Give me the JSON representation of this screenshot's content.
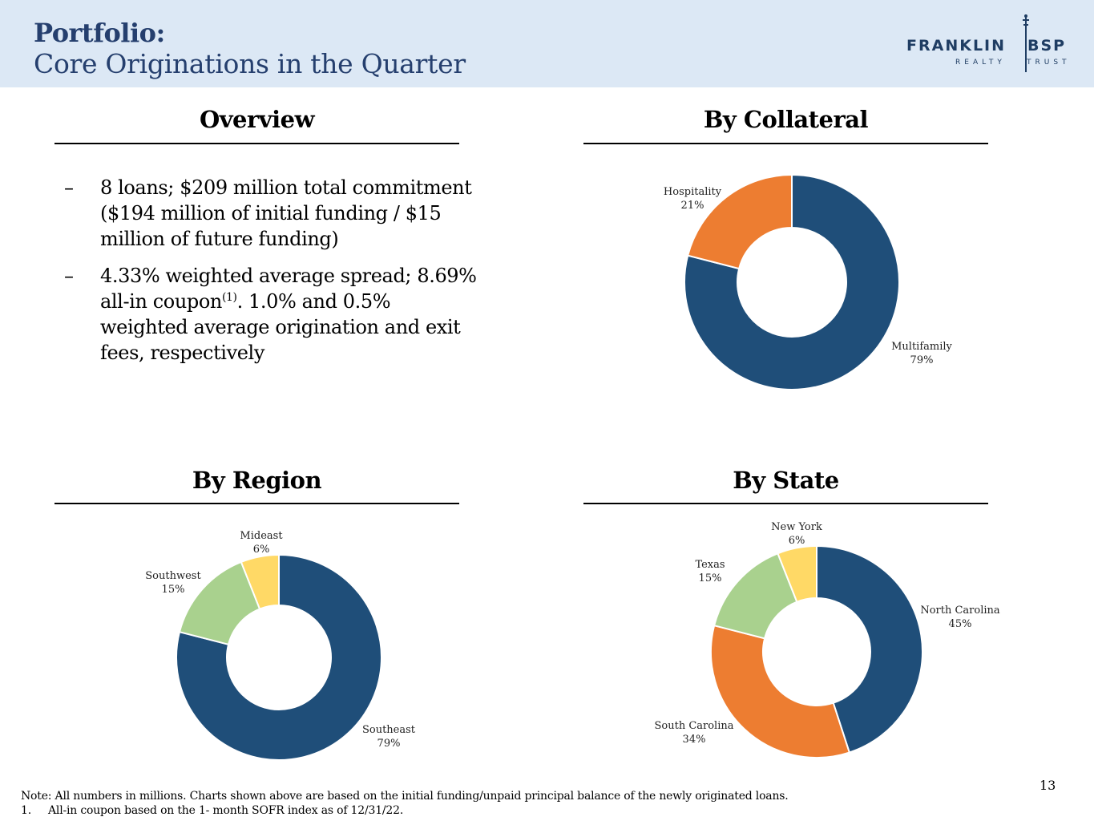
{
  "header": {
    "title": "Portfolio:",
    "subtitle": "Core Originations in the Quarter",
    "logo": {
      "word1": "FRANKLIN",
      "word2": "BSP",
      "word3": "REALTY",
      "word4": "TRUST"
    }
  },
  "overview": {
    "title": "Overview",
    "bullets": [
      {
        "dash": "–",
        "text": "8 loans; $209 million total commitment ($194 million of initial funding / $15 million of future funding)"
      },
      {
        "dash": "–",
        "text_before": "4.33% weighted average spread; 8.69% all-in coupon",
        "sup": "(1)",
        "text_after": ". 1.0% and 0.5% weighted average origination and exit fees, respectively"
      }
    ]
  },
  "colors": {
    "dark_blue": "#1f4e79",
    "orange": "#ed7d31",
    "green": "#a9d18e",
    "yellow": "#ffd966",
    "title_blue": "#253f6e"
  },
  "chart_data": [
    {
      "type": "pie",
      "title": "By Collateral",
      "categories": [
        "Multifamily",
        "Hospitality"
      ],
      "values": [
        79,
        21
      ],
      "labels": [
        "79%",
        "21%"
      ],
      "colors": [
        "#1f4e79",
        "#ed7d31"
      ]
    },
    {
      "type": "pie",
      "title": "By Region",
      "categories": [
        "Southeast",
        "Southwest",
        "Mideast"
      ],
      "values": [
        79,
        15,
        6
      ],
      "labels": [
        "79%",
        "15%",
        "6%"
      ],
      "colors": [
        "#1f4e79",
        "#a9d18e",
        "#ffd966"
      ]
    },
    {
      "type": "pie",
      "title": "By State",
      "categories": [
        "North Carolina",
        "South Carolina",
        "Texas",
        "New York"
      ],
      "values": [
        45,
        34,
        15,
        6
      ],
      "labels": [
        "45%",
        "34%",
        "15%",
        "6%"
      ],
      "colors": [
        "#1f4e79",
        "#ed7d31",
        "#a9d18e",
        "#ffd966"
      ]
    }
  ],
  "footer": {
    "note": "Note: All numbers in millions. Charts shown above are based on the initial funding/unpaid principal balance of the newly originated loans.",
    "footnote_num": "1.",
    "footnote_text": "All-in coupon based on the 1- month SOFR index as of 12/31/22.",
    "page_number": "13"
  }
}
